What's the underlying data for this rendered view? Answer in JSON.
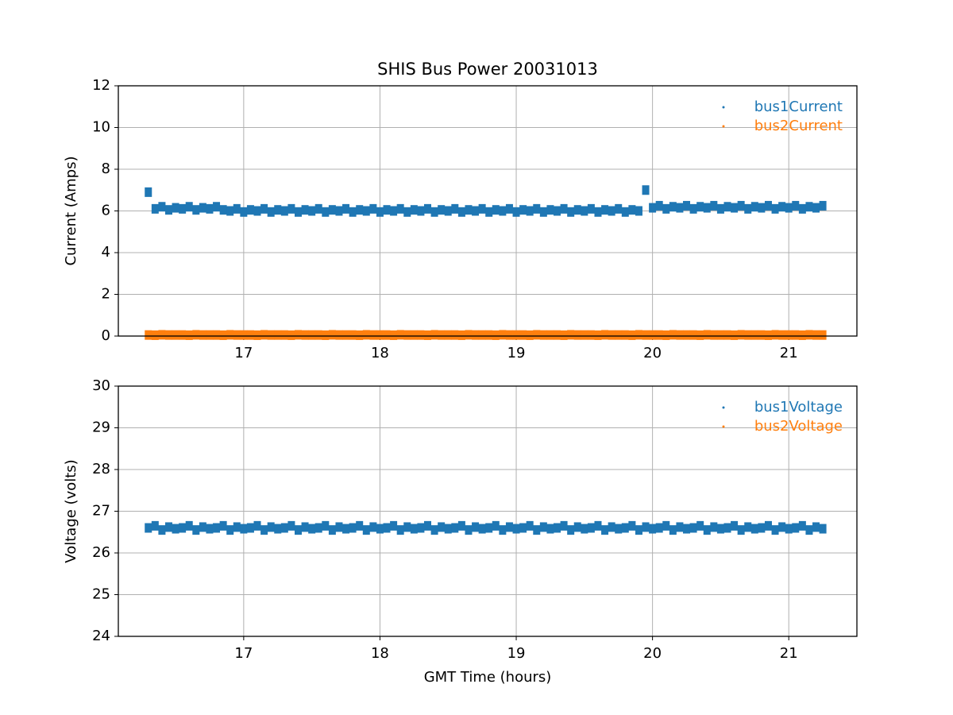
{
  "chart_data": [
    {
      "type": "scatter",
      "title": "SHIS Bus Power 20031013",
      "ylabel": "Current (Amps)",
      "xlim": [
        16.08,
        21.5
      ],
      "xticks": [
        17,
        18,
        19,
        20,
        21
      ],
      "ylim": [
        0,
        12
      ],
      "yticks": [
        0,
        2,
        4,
        6,
        8,
        10,
        12
      ],
      "grid": true,
      "legend": "upper right",
      "x": [
        16.3,
        16.35,
        16.4,
        16.45,
        16.5,
        16.55,
        16.6,
        16.65,
        16.7,
        16.75,
        16.8,
        16.85,
        16.9,
        16.95,
        17,
        17.05,
        17.1,
        17.15,
        17.2,
        17.25,
        17.3,
        17.35,
        17.4,
        17.45,
        17.5,
        17.55,
        17.6,
        17.65,
        17.7,
        17.75,
        17.8,
        17.85,
        17.9,
        17.95,
        18,
        18.05,
        18.1,
        18.15,
        18.2,
        18.25,
        18.3,
        18.35,
        18.4,
        18.45,
        18.5,
        18.55,
        18.6,
        18.65,
        18.7,
        18.75,
        18.8,
        18.85,
        18.9,
        18.95,
        19,
        19.05,
        19.1,
        19.15,
        19.2,
        19.25,
        19.3,
        19.35,
        19.4,
        19.45,
        19.5,
        19.55,
        19.6,
        19.65,
        19.7,
        19.75,
        19.8,
        19.85,
        19.9,
        19.95,
        20,
        20.05,
        20.1,
        20.15,
        20.2,
        20.25,
        20.3,
        20.35,
        20.4,
        20.45,
        20.5,
        20.55,
        20.6,
        20.65,
        20.7,
        20.75,
        20.8,
        20.85,
        20.9,
        20.95,
        21,
        21.05,
        21.1,
        21.15,
        21.2,
        21.25
      ],
      "series": [
        {
          "name": "bus1Current",
          "color": "#1f77b4",
          "values": [
            6.9,
            6.1,
            6.2,
            6.05,
            6.15,
            6.1,
            6.2,
            6.05,
            6.15,
            6.1,
            6.2,
            6.05,
            6.0,
            6.1,
            5.95,
            6.05,
            6.0,
            6.1,
            5.95,
            6.05,
            6.0,
            6.1,
            5.95,
            6.05,
            6.0,
            6.1,
            5.95,
            6.05,
            6.0,
            6.1,
            5.95,
            6.05,
            6.0,
            6.1,
            5.95,
            6.05,
            6.0,
            6.1,
            5.95,
            6.05,
            6.0,
            6.1,
            5.95,
            6.05,
            6.0,
            6.1,
            5.95,
            6.05,
            6.0,
            6.1,
            5.95,
            6.05,
            6.0,
            6.1,
            5.95,
            6.05,
            6.0,
            6.1,
            5.95,
            6.05,
            6.0,
            6.1,
            5.95,
            6.05,
            6.0,
            6.1,
            5.95,
            6.05,
            6.0,
            6.1,
            5.95,
            6.05,
            6.0,
            7.0,
            6.15,
            6.25,
            6.1,
            6.2,
            6.15,
            6.25,
            6.1,
            6.2,
            6.15,
            6.25,
            6.1,
            6.2,
            6.15,
            6.25,
            6.1,
            6.2,
            6.15,
            6.25,
            6.1,
            6.2,
            6.15,
            6.25,
            6.1,
            6.2,
            6.15,
            6.25
          ]
        },
        {
          "name": "bus2Current",
          "color": "#ff7f0e",
          "values": [
            0.05,
            0.04,
            0.06,
            0.05,
            0.05,
            0.05,
            0.04,
            0.06,
            0.05,
            0.05,
            0.05,
            0.04,
            0.06,
            0.05,
            0.05,
            0.05,
            0.04,
            0.06,
            0.05,
            0.05,
            0.05,
            0.04,
            0.06,
            0.05,
            0.05,
            0.05,
            0.04,
            0.06,
            0.05,
            0.05,
            0.05,
            0.04,
            0.06,
            0.05,
            0.05,
            0.05,
            0.04,
            0.06,
            0.05,
            0.05,
            0.05,
            0.04,
            0.06,
            0.05,
            0.05,
            0.05,
            0.04,
            0.06,
            0.05,
            0.05,
            0.05,
            0.04,
            0.06,
            0.05,
            0.05,
            0.05,
            0.04,
            0.06,
            0.05,
            0.05,
            0.05,
            0.04,
            0.06,
            0.05,
            0.05,
            0.05,
            0.04,
            0.06,
            0.05,
            0.05,
            0.05,
            0.04,
            0.06,
            0.05,
            0.05,
            0.05,
            0.04,
            0.06,
            0.05,
            0.05,
            0.05,
            0.04,
            0.06,
            0.05,
            0.05,
            0.05,
            0.04,
            0.06,
            0.05,
            0.05,
            0.05,
            0.04,
            0.06,
            0.05,
            0.05,
            0.05,
            0.04,
            0.06,
            0.05,
            0.05
          ]
        }
      ]
    },
    {
      "type": "scatter",
      "ylabel": "Voltage (volts)",
      "xlabel": "GMT Time (hours)",
      "xlim": [
        16.08,
        21.5
      ],
      "xticks": [
        17,
        18,
        19,
        20,
        21
      ],
      "ylim": [
        24,
        30
      ],
      "yticks": [
        24,
        25,
        26,
        27,
        28,
        29,
        30
      ],
      "grid": true,
      "legend": "upper right",
      "x": [
        16.3,
        16.35,
        16.4,
        16.45,
        16.5,
        16.55,
        16.6,
        16.65,
        16.7,
        16.75,
        16.8,
        16.85,
        16.9,
        16.95,
        17,
        17.05,
        17.1,
        17.15,
        17.2,
        17.25,
        17.3,
        17.35,
        17.4,
        17.45,
        17.5,
        17.55,
        17.6,
        17.65,
        17.7,
        17.75,
        17.8,
        17.85,
        17.9,
        17.95,
        18,
        18.05,
        18.1,
        18.15,
        18.2,
        18.25,
        18.3,
        18.35,
        18.4,
        18.45,
        18.5,
        18.55,
        18.6,
        18.65,
        18.7,
        18.75,
        18.8,
        18.85,
        18.9,
        18.95,
        19,
        19.05,
        19.1,
        19.15,
        19.2,
        19.25,
        19.3,
        19.35,
        19.4,
        19.45,
        19.5,
        19.55,
        19.6,
        19.65,
        19.7,
        19.75,
        19.8,
        19.85,
        19.9,
        19.95,
        20,
        20.05,
        20.1,
        20.15,
        20.2,
        20.25,
        20.3,
        20.35,
        20.4,
        20.45,
        20.5,
        20.55,
        20.6,
        20.65,
        20.7,
        20.75,
        20.8,
        20.85,
        20.9,
        20.95,
        21,
        21.05,
        21.1,
        21.15,
        21.2,
        21.25
      ],
      "series": [
        {
          "name": "bus1Voltage",
          "color": "#1f77b4",
          "values": [
            26.6,
            26.65,
            26.55,
            26.62,
            26.58,
            26.6,
            26.65,
            26.55,
            26.62,
            26.58,
            26.6,
            26.65,
            26.55,
            26.62,
            26.58,
            26.6,
            26.65,
            26.55,
            26.62,
            26.58,
            26.6,
            26.65,
            26.55,
            26.62,
            26.58,
            26.6,
            26.65,
            26.55,
            26.62,
            26.58,
            26.6,
            26.65,
            26.55,
            26.62,
            26.58,
            26.6,
            26.65,
            26.55,
            26.62,
            26.58,
            26.6,
            26.65,
            26.55,
            26.62,
            26.58,
            26.6,
            26.65,
            26.55,
            26.62,
            26.58,
            26.6,
            26.65,
            26.55,
            26.62,
            26.58,
            26.6,
            26.65,
            26.55,
            26.62,
            26.58,
            26.6,
            26.65,
            26.55,
            26.62,
            26.58,
            26.6,
            26.65,
            26.55,
            26.62,
            26.58,
            26.6,
            26.65,
            26.55,
            26.62,
            26.58,
            26.6,
            26.65,
            26.55,
            26.62,
            26.58,
            26.6,
            26.65,
            26.55,
            26.62,
            26.58,
            26.6,
            26.65,
            26.55,
            26.62,
            26.58,
            26.6,
            26.65,
            26.55,
            26.62,
            26.58,
            26.6,
            26.65,
            26.55,
            26.62,
            26.58
          ]
        },
        {
          "name": "bus2Voltage",
          "color": "#ff7f0e",
          "values": [
            null,
            null,
            null,
            null,
            null,
            null,
            null,
            null,
            null,
            null,
            null,
            null,
            null,
            null,
            null,
            null,
            null,
            null,
            null,
            null,
            null,
            null,
            null,
            null,
            null,
            null,
            null,
            null,
            null,
            null,
            null,
            null,
            null,
            null,
            null,
            null,
            null,
            null,
            null,
            null,
            null,
            null,
            null,
            null,
            null,
            null,
            null,
            null,
            null,
            null,
            null,
            null,
            null,
            null,
            null,
            null,
            null,
            null,
            null,
            null,
            null,
            null,
            null,
            null,
            null,
            null,
            null,
            null,
            null,
            null,
            null,
            null,
            null,
            null,
            null,
            null,
            null,
            null,
            null,
            null,
            null,
            null,
            null,
            null,
            null,
            null,
            null,
            null,
            null,
            null,
            null,
            null,
            null,
            null,
            null,
            null,
            null,
            null,
            null,
            null
          ]
        }
      ]
    }
  ]
}
